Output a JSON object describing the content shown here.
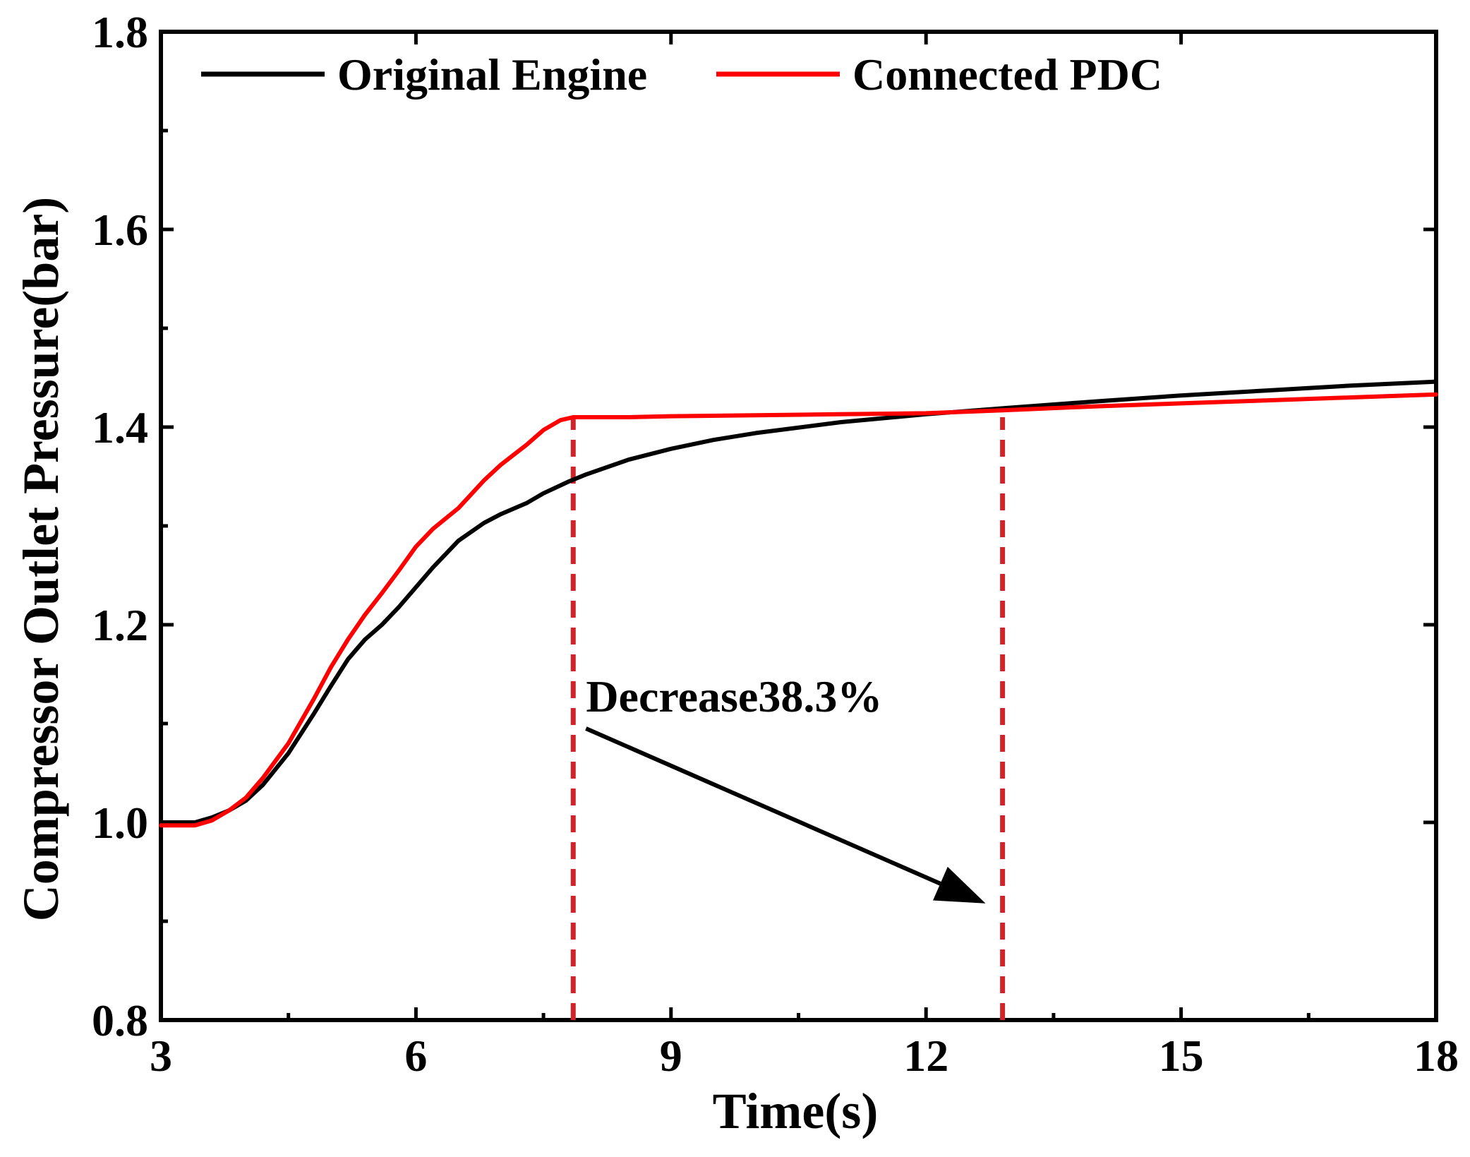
{
  "chart_data": {
    "type": "line",
    "title": "",
    "xlabel": "Time(s)",
    "ylabel": "Compressor Outlet Pressure(bar)",
    "xlim": [
      3,
      18
    ],
    "ylim": [
      0.8,
      1.8
    ],
    "x_ticks": [
      3,
      6,
      9,
      12,
      15,
      18
    ],
    "y_ticks": [
      "0.8",
      "1.0",
      "1.2",
      "1.4",
      "1.6",
      "1.8"
    ],
    "legend_position": "top",
    "series": [
      {
        "name": "Original Engine",
        "color": "#000000",
        "x": [
          3.0,
          3.4,
          3.6,
          3.8,
          4.0,
          4.2,
          4.5,
          4.8,
          5.0,
          5.2,
          5.4,
          5.6,
          5.8,
          6.0,
          6.2,
          6.5,
          6.8,
          7.0,
          7.3,
          7.5,
          7.8,
          8.0,
          8.5,
          9.0,
          9.5,
          10.0,
          11.0,
          12.0,
          12.9,
          14.0,
          15.0,
          16.0,
          17.0,
          18.0
        ],
        "y": [
          1.0,
          1.0,
          1.005,
          1.012,
          1.022,
          1.038,
          1.07,
          1.11,
          1.138,
          1.165,
          1.185,
          1.2,
          1.218,
          1.238,
          1.258,
          1.285,
          1.303,
          1.312,
          1.323,
          1.333,
          1.345,
          1.352,
          1.367,
          1.378,
          1.387,
          1.394,
          1.405,
          1.413,
          1.419,
          1.426,
          1.432,
          1.437,
          1.442,
          1.446
        ]
      },
      {
        "name": "Connected PDC",
        "color": "#ff0000",
        "x": [
          3.0,
          3.4,
          3.6,
          3.8,
          4.0,
          4.2,
          4.5,
          4.8,
          5.0,
          5.2,
          5.4,
          5.6,
          5.8,
          6.0,
          6.2,
          6.5,
          6.8,
          7.0,
          7.3,
          7.5,
          7.7,
          7.85,
          8.0,
          8.5,
          9.0,
          10.0,
          11.0,
          12.0,
          12.9,
          14.0,
          15.0,
          16.0,
          17.0,
          18.0
        ],
        "y": [
          0.997,
          0.997,
          1.002,
          1.012,
          1.025,
          1.045,
          1.08,
          1.125,
          1.157,
          1.185,
          1.21,
          1.232,
          1.255,
          1.279,
          1.297,
          1.318,
          1.346,
          1.362,
          1.382,
          1.397,
          1.407,
          1.41,
          1.41,
          1.41,
          1.411,
          1.412,
          1.413,
          1.414,
          1.417,
          1.421,
          1.424,
          1.427,
          1.43,
          1.433
        ]
      }
    ],
    "reference_lines": [
      {
        "x": 7.85,
        "style": "dashed",
        "color": "#d0232a"
      },
      {
        "x": 12.9,
        "style": "dashed",
        "color": "#d0232a"
      }
    ],
    "annotation": {
      "text": "Decrease38.3%",
      "arrow_from": [
        8.0,
        1.095
      ],
      "arrow_to": [
        12.7,
        0.918
      ]
    }
  }
}
